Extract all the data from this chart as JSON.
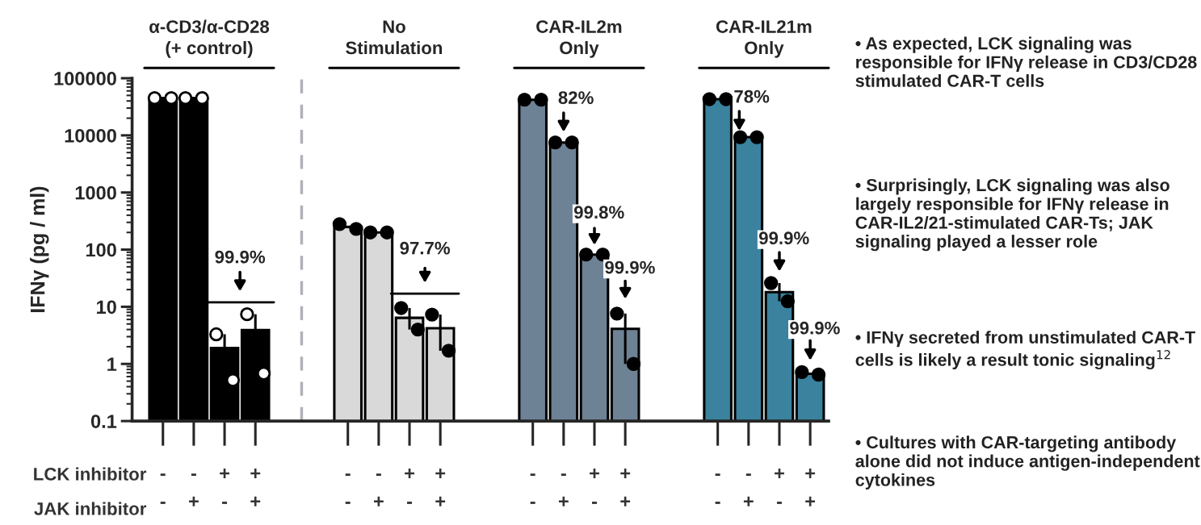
{
  "chart_data": {
    "type": "bar",
    "ylabel": "IFNγ (pg / ml)",
    "log": "y",
    "ylim": [
      0.1,
      100000
    ],
    "yticks": [
      0.1,
      1,
      10,
      100,
      1000,
      10000,
      100000
    ],
    "categories": [
      "-\n-",
      "-\n+",
      "+\n-",
      "+\n+",
      null,
      null,
      "-\n-",
      "-\n+",
      "+\n-",
      "+\n+",
      null,
      null,
      "-\n-",
      "-\n+",
      "+\n-",
      "+\n+",
      null,
      null,
      "-\n-",
      "-\n+",
      "+\n-",
      "+\n+"
    ],
    "series": [
      {
        "values": [
          45000,
          45000,
          1.9,
          3.9,
          null,
          null,
          250,
          200,
          6.4,
          4.2,
          null,
          null,
          42000,
          7500,
          82,
          4.1,
          null,
          null,
          43000,
          9300,
          18,
          0.67
        ],
        "colors": [
          "#000000",
          "#000000",
          "#000000",
          "#000000",
          null,
          null,
          "#d9d9d9",
          "#d9d9d9",
          "#d9d9d9",
          "#d9d9d9",
          null,
          null,
          "#6e8295",
          "#6e8295",
          "#6e8295",
          "#6e8295",
          null,
          null,
          "#3a829e",
          "#3a829e",
          "#3a829e",
          "#3a829e"
        ],
        "errors": [
          null,
          null,
          [
            1.9,
            3.3
          ],
          [
            3.9,
            7.4
          ],
          null,
          null,
          null,
          null,
          [
            4.0,
            9.5
          ],
          [
            1.7,
            7.3
          ],
          null,
          null,
          null,
          null,
          null,
          [
            1.0,
            7.6
          ],
          null,
          null,
          null,
          null,
          [
            12.5,
            26
          ],
          null
        ]
      },
      {
        "type": "scatter",
        "marker": "circle",
        "values": [
          45000,
          45000,
          3.3,
          7.4,
          null,
          null,
          280,
          200,
          9.5,
          7.3,
          null,
          null,
          42000,
          7500,
          82,
          7.6,
          null,
          null,
          43000,
          9300,
          26,
          0.72
        ],
        "colors": [
          "#ffffff",
          "#ffffff",
          "#ffffff",
          "#ffffff",
          null,
          null,
          "#000000",
          "#000000",
          "#000000",
          "#000000",
          null,
          null,
          "#000000",
          "#000000",
          "#000000",
          "#000000",
          null,
          null,
          "#000000",
          "#000000",
          "#000000",
          "#000000"
        ]
      },
      {
        "type": "scatter",
        "marker": "circle",
        "values": [
          45000,
          45000,
          0.52,
          0.68,
          null,
          null,
          230,
          200,
          4.0,
          1.7,
          null,
          null,
          42000,
          7500,
          82,
          1.0,
          null,
          null,
          43000,
          9300,
          12.5,
          0.65
        ],
        "colors": [
          "#ffffff",
          "#ffffff",
          "#ffffff",
          "#ffffff",
          null,
          null,
          "#000000",
          "#000000",
          "#000000",
          "#000000",
          null,
          null,
          "#000000",
          "#000000",
          "#000000",
          "#000000",
          null,
          null,
          "#000000",
          "#000000",
          "#000000",
          "#000000"
        ]
      }
    ],
    "grid": false,
    "legend": false,
    "annotations": [
      "α-CD3/α-CD28\n(+ control)",
      "No\nStimulation",
      "CAR-IL2m\nOnly",
      "CAR-IL21m\nOnly",
      "99.9%",
      "97.7%",
      "82%",
      "99.8%",
      "99.9%",
      "78%",
      "99.9%",
      "99.9%",
      "LCK inhibitor",
      "JAK inhibitor",
      "• As expected, LCK signaling was responsible for IFNγ release in CD3/CD28 stimulated CAR-T cells",
      "• Surprisingly, LCK signaling was also largely responsible for IFNγ release in CAR-IL2/21-stimulated CAR-Ts; JAK signaling played a lesser role",
      "• IFNγ secreted from unstimulated CAR-T cells is likely a result tonic signaling$^{12}$",
      "• Cultures with CAR-targeting antibody alone did not induce antigen-independent cytokines"
    ]
  }
}
